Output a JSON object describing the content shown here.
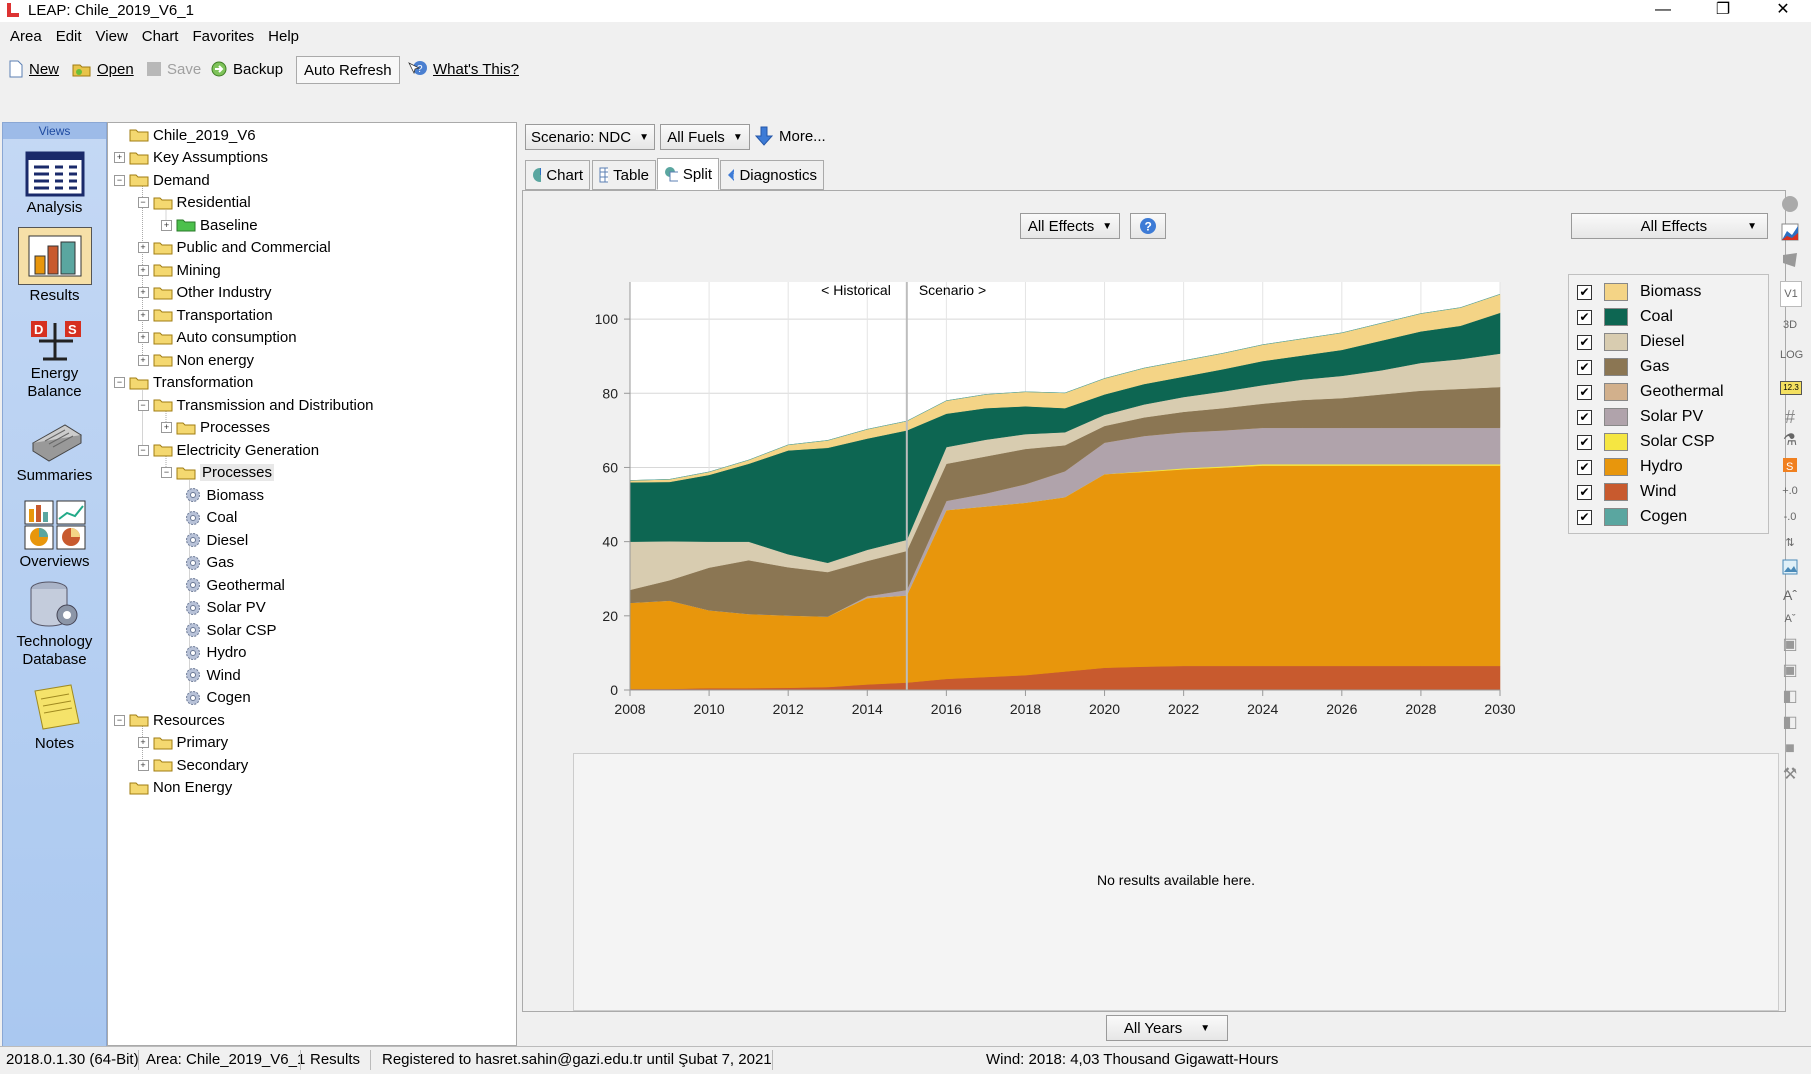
{
  "window": {
    "title": "LEAP: Chile_2019_V6_1"
  },
  "menu": [
    "Area",
    "Edit",
    "View",
    "Chart",
    "Favorites",
    "Help"
  ],
  "toolbar": {
    "new": "New",
    "open": "Open",
    "save": "Save",
    "backup": "Backup",
    "auto_refresh": "Auto Refresh",
    "whats_this": "What's This?"
  },
  "views": {
    "header": "Views",
    "items": [
      {
        "label": "Analysis",
        "icon": "analysis-icon"
      },
      {
        "label": "Results",
        "icon": "results-icon",
        "selected": true
      },
      {
        "label1": "Energy",
        "label2": "Balance",
        "icon": "energy-balance-icon"
      },
      {
        "label": "Summaries",
        "icon": "summaries-icon"
      },
      {
        "label": "Overviews",
        "icon": "overviews-icon"
      },
      {
        "label1": "Technology",
        "label2": "Database",
        "icon": "technology-database-icon"
      },
      {
        "label": "Notes",
        "icon": "notes-icon"
      }
    ]
  },
  "tree": [
    {
      "label": "Chile_2019_V6",
      "level": 0,
      "expander": ""
    },
    {
      "label": "Key Assumptions",
      "level": 0,
      "expander": "+"
    },
    {
      "label": "Demand",
      "level": 0,
      "expander": "-"
    },
    {
      "label": "Residential",
      "level": 1,
      "expander": "-"
    },
    {
      "label": "Baseline",
      "level": 2,
      "expander": "+",
      "green": true
    },
    {
      "label": "Public and Commercial",
      "level": 1,
      "expander": "+"
    },
    {
      "label": "Mining",
      "level": 1,
      "expander": "+"
    },
    {
      "label": "Other Industry",
      "level": 1,
      "expander": "+"
    },
    {
      "label": "Transportation",
      "level": 1,
      "expander": "+"
    },
    {
      "label": "Auto consumption",
      "level": 1,
      "expander": "+"
    },
    {
      "label": "Non energy",
      "level": 1,
      "expander": "+"
    },
    {
      "label": "Transformation",
      "level": 0,
      "expander": "-"
    },
    {
      "label": "Transmission and Distribution",
      "level": 1,
      "expander": "-"
    },
    {
      "label": "Processes",
      "level": 2,
      "expander": "+"
    },
    {
      "label": "Electricity Generation",
      "level": 1,
      "expander": "-"
    },
    {
      "label": "Processes",
      "level": 2,
      "expander": "-",
      "selected": true
    },
    {
      "label": "Biomass",
      "level": 3,
      "gear": true
    },
    {
      "label": "Coal",
      "level": 3,
      "gear": true
    },
    {
      "label": "Diesel",
      "level": 3,
      "gear": true
    },
    {
      "label": "Gas",
      "level": 3,
      "gear": true
    },
    {
      "label": "Geothermal",
      "level": 3,
      "gear": true
    },
    {
      "label": "Solar PV",
      "level": 3,
      "gear": true
    },
    {
      "label": "Solar CSP",
      "level": 3,
      "gear": true
    },
    {
      "label": "Hydro",
      "level": 3,
      "gear": true
    },
    {
      "label": "Wind",
      "level": 3,
      "gear": true
    },
    {
      "label": "Cogen",
      "level": 3,
      "gear": true
    },
    {
      "label": "Resources",
      "level": 0,
      "expander": "-"
    },
    {
      "label": "Primary",
      "level": 1,
      "expander": "+"
    },
    {
      "label": "Secondary",
      "level": 1,
      "expander": "+"
    },
    {
      "label": "Non Energy",
      "level": 0,
      "expander": ""
    }
  ],
  "controls": {
    "scenario": "Scenario: NDC",
    "fuels": "All Fuels",
    "more": "More...",
    "effects_left": "All Effects",
    "effects_right": "All Effects",
    "years": "All Years"
  },
  "tabs": [
    {
      "label": "Chart",
      "active": false
    },
    {
      "label": "Table",
      "active": false
    },
    {
      "label": "Split",
      "active": true
    },
    {
      "label": "Diagnostics",
      "active": false
    }
  ],
  "lower_panel": {
    "message": "No results available here."
  },
  "chart_data": {
    "type": "area",
    "stacked": true,
    "x": [
      2008,
      2009,
      2010,
      2011,
      2012,
      2013,
      2014,
      2015,
      2016,
      2017,
      2018,
      2019,
      2020,
      2021,
      2022,
      2023,
      2024,
      2025,
      2026,
      2027,
      2028,
      2029,
      2030
    ],
    "series": [
      {
        "name": "Wind",
        "color": "#c85a2e",
        "values": [
          0.3,
          0.3,
          0.5,
          0.5,
          0.6,
          0.8,
          1.5,
          2.0,
          3.0,
          3.5,
          4.0,
          5.0,
          6.0,
          6.3,
          6.5,
          6.5,
          6.5,
          6.5,
          6.5,
          6.5,
          6.5,
          6.5,
          6.5
        ]
      },
      {
        "name": "Hydro",
        "color": "#e8960c",
        "values": [
          23.2,
          23.8,
          21.0,
          20.0,
          19.5,
          19.0,
          23.3,
          23.5,
          45.5,
          46.0,
          46.5,
          47.0,
          52.2,
          52.5,
          53.0,
          53.5,
          54.0,
          54.0,
          54.0,
          54.0,
          54.0,
          54.0,
          54.0
        ]
      },
      {
        "name": "Solar CSP",
        "color": "#f5e642",
        "values": [
          0,
          0,
          0,
          0,
          0,
          0,
          0,
          0,
          0,
          0,
          0,
          0,
          0,
          0.2,
          0.3,
          0.3,
          0.4,
          0.4,
          0.4,
          0.4,
          0.4,
          0.4,
          0.4
        ]
      },
      {
        "name": "Solar PV",
        "color": "#b0a3ab",
        "values": [
          0,
          0,
          0,
          0,
          0,
          0,
          0.5,
          1.5,
          2.5,
          3.5,
          5.0,
          7.0,
          8.5,
          9.5,
          9.7,
          9.7,
          9.8,
          9.8,
          9.8,
          9.8,
          9.8,
          9.8,
          9.8
        ]
      },
      {
        "name": "Geothermal",
        "color": "#d2b08c",
        "values": [
          0,
          0,
          0,
          0,
          0,
          0,
          0,
          0,
          0,
          0,
          0,
          0,
          0,
          0,
          0,
          0,
          0,
          0,
          0,
          0,
          0,
          0,
          0
        ]
      },
      {
        "name": "Gas",
        "color": "#8b7653",
        "values": [
          3.5,
          5.5,
          11.5,
          14.5,
          13.0,
          12.0,
          9.5,
          10.5,
          10.0,
          10.0,
          9.5,
          7.0,
          4.5,
          5.0,
          5.5,
          6.0,
          6.5,
          7.5,
          8.0,
          9.0,
          10.0,
          10.5,
          11.0
        ]
      },
      {
        "name": "Diesel",
        "color": "#d8ccb0",
        "values": [
          13.0,
          10.5,
          7.0,
          5.0,
          3.5,
          2.5,
          3.0,
          3.0,
          4.5,
          4.5,
          4.0,
          3.5,
          3.0,
          3.5,
          4.0,
          4.5,
          5.0,
          5.5,
          6.0,
          6.5,
          7.5,
          8.0,
          9.0
        ]
      },
      {
        "name": "Coal",
        "color": "#0d6652",
        "values": [
          16.0,
          16.0,
          18.0,
          21.0,
          28.0,
          31.0,
          30.0,
          29.5,
          9.0,
          8.5,
          7.5,
          6.5,
          5.5,
          5.5,
          5.5,
          6.0,
          6.5,
          6.5,
          7.0,
          8.0,
          8.5,
          9.0,
          11.0
        ]
      },
      {
        "name": "Biomass",
        "color": "#f4d486",
        "values": [
          0.5,
          0.7,
          0.8,
          1.0,
          1.5,
          2.0,
          2.5,
          2.5,
          3.5,
          3.7,
          3.9,
          4.1,
          4.3,
          4.3,
          4.3,
          4.3,
          4.4,
          4.5,
          4.6,
          4.7,
          4.8,
          4.9,
          5.0
        ]
      },
      {
        "name": "Cogen",
        "color": "#5aa6a0",
        "values": [
          0,
          0,
          0,
          0,
          0,
          0,
          0,
          0,
          0,
          0,
          0,
          0,
          0,
          0,
          0,
          0,
          0,
          0,
          0,
          0,
          0,
          0,
          0
        ]
      }
    ],
    "xticks": [
      2008,
      2010,
      2012,
      2014,
      2016,
      2018,
      2020,
      2022,
      2024,
      2026,
      2028,
      2030
    ],
    "yticks": [
      0,
      20,
      40,
      60,
      80,
      100
    ],
    "ylim": [
      0,
      110
    ],
    "xlim": [
      2008,
      2030
    ],
    "divider_year": 2015,
    "annotations": {
      "historical": "< Historical",
      "scenario": "Scenario >"
    },
    "grid": true
  },
  "legend": [
    {
      "name": "Biomass",
      "color": "#f4d486"
    },
    {
      "name": "Coal",
      "color": "#0d6652"
    },
    {
      "name": "Diesel",
      "color": "#d8ccb0"
    },
    {
      "name": "Gas",
      "color": "#8b7653"
    },
    {
      "name": "Geothermal",
      "color": "#d2b08c"
    },
    {
      "name": "Solar PV",
      "color": "#b0a3ab"
    },
    {
      "name": "Solar CSP",
      "color": "#f5e642"
    },
    {
      "name": "Hydro",
      "color": "#e8960c"
    },
    {
      "name": "Wind",
      "color": "#c85a2e"
    },
    {
      "name": "Cogen",
      "color": "#5aa6a0"
    }
  ],
  "right_toolbar": {
    "v1": "V1",
    "three_d": "3D",
    "log": "LOG",
    "num": "12.3"
  },
  "status": {
    "version": "2018.0.1.30 (64-Bit)",
    "area": "Area: Chile_2019_V6_1",
    "view": "Results",
    "registration": "Registered to hasret.sahin@gazi.edu.tr until Şubat 7, 2021",
    "hover": "Wind: 2018: 4,03 Thousand Gigawatt-Hours"
  }
}
